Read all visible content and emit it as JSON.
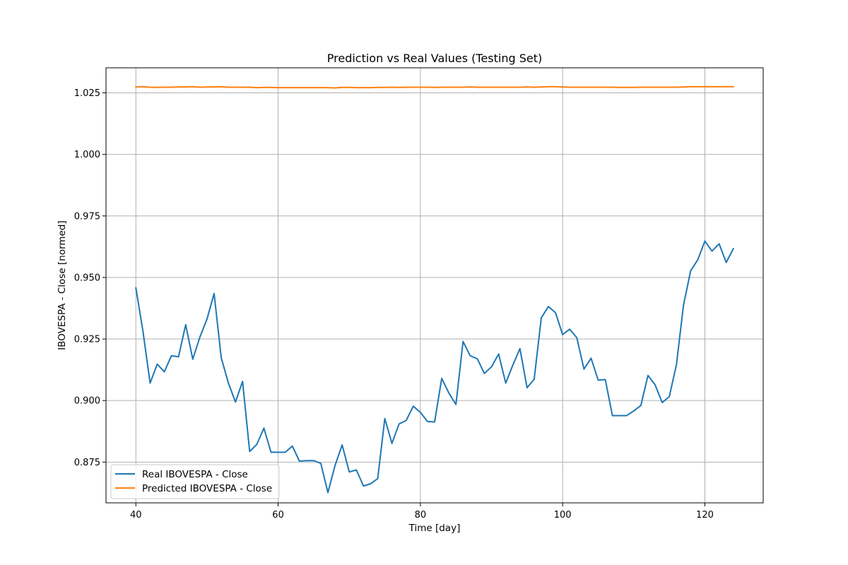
{
  "chart_data": {
    "type": "line",
    "title": "Prediction vs Real Values (Testing Set)",
    "xlabel": "Time [day]",
    "ylabel": "IBOVESPA - Close [normed]",
    "xlim": [
      35.8,
      128.2
    ],
    "ylim": [
      0.85845,
      1.03518
    ],
    "xticks": [
      40,
      60,
      80,
      100,
      120
    ],
    "xtick_labels": [
      "40",
      "60",
      "80",
      "100",
      "120"
    ],
    "yticks": [
      0.875,
      0.9,
      0.925,
      0.95,
      0.975,
      1.0,
      1.025
    ],
    "ytick_labels": [
      "0.875",
      "0.900",
      "0.925",
      "0.950",
      "0.975",
      "1.000",
      "1.025"
    ],
    "grid": true,
    "legend_position": "lower-left",
    "x": [
      40,
      41,
      42,
      43,
      44,
      45,
      46,
      47,
      48,
      49,
      50,
      51,
      52,
      53,
      54,
      55,
      56,
      57,
      58,
      59,
      60,
      61,
      62,
      63,
      64,
      65,
      66,
      67,
      68,
      69,
      70,
      71,
      72,
      73,
      74,
      75,
      76,
      77,
      78,
      79,
      80,
      81,
      82,
      83,
      84,
      85,
      86,
      87,
      88,
      89,
      90,
      91,
      92,
      93,
      94,
      95,
      96,
      97,
      98,
      99,
      100,
      101,
      102,
      103,
      104,
      105,
      106,
      107,
      108,
      109,
      110,
      111,
      112,
      113,
      114,
      115,
      116,
      117,
      118,
      119,
      120,
      121,
      122,
      123,
      124
    ],
    "series": [
      {
        "name": "Real IBOVESPA - Close",
        "color": "#1f77b4",
        "values": [
          0.9458,
          0.9281,
          0.9071,
          0.9148,
          0.9117,
          0.9182,
          0.9178,
          0.9308,
          0.9168,
          0.9258,
          0.9331,
          0.9435,
          0.9174,
          0.9072,
          0.8994,
          0.9078,
          0.8793,
          0.8822,
          0.8888,
          0.879,
          0.879,
          0.879,
          0.8815,
          0.8754,
          0.8756,
          0.8756,
          0.8745,
          0.8626,
          0.8736,
          0.882,
          0.871,
          0.8718,
          0.8653,
          0.8662,
          0.8683,
          0.8927,
          0.8826,
          0.8905,
          0.8919,
          0.8977,
          0.8952,
          0.8915,
          0.8913,
          0.909,
          0.9031,
          0.8984,
          0.924,
          0.9182,
          0.917,
          0.911,
          0.9137,
          0.9189,
          0.9071,
          0.9144,
          0.9211,
          0.9052,
          0.9087,
          0.9336,
          0.9382,
          0.9357,
          0.9268,
          0.929,
          0.9255,
          0.9128,
          0.9172,
          0.9083,
          0.9085,
          0.8939,
          0.8939,
          0.8939,
          0.8958,
          0.898,
          0.9102,
          0.9064,
          0.8992,
          0.9016,
          0.9146,
          0.9389,
          0.9527,
          0.9572,
          0.9648,
          0.9607,
          0.9637,
          0.9561,
          0.9617
        ]
      },
      {
        "name": "Predicted IBOVESPA - Close",
        "color": "#ff7f0e",
        "values": [
          1.0274,
          1.0275,
          1.0273,
          1.0272,
          1.0273,
          1.0273,
          1.0274,
          1.0274,
          1.0275,
          1.0273,
          1.0274,
          1.0274,
          1.0275,
          1.0273,
          1.0273,
          1.0273,
          1.0273,
          1.0271,
          1.0272,
          1.0272,
          1.0271,
          1.0271,
          1.0271,
          1.0271,
          1.0271,
          1.0271,
          1.0271,
          1.0271,
          1.027,
          1.0272,
          1.0272,
          1.0271,
          1.0271,
          1.0271,
          1.0272,
          1.0272,
          1.0273,
          1.0272,
          1.0273,
          1.0273,
          1.0273,
          1.0273,
          1.0272,
          1.0273,
          1.0273,
          1.0273,
          1.0273,
          1.0274,
          1.0273,
          1.0273,
          1.0273,
          1.0273,
          1.0273,
          1.0273,
          1.0273,
          1.0274,
          1.0273,
          1.0274,
          1.0275,
          1.0275,
          1.0274,
          1.0273,
          1.0273,
          1.0273,
          1.0273,
          1.0273,
          1.0273,
          1.0273,
          1.0272,
          1.0272,
          1.0272,
          1.0273,
          1.0273,
          1.0273,
          1.0273,
          1.0273,
          1.0273,
          1.0274,
          1.0275,
          1.0275,
          1.0275,
          1.0275,
          1.0275,
          1.0275,
          1.0275
        ]
      }
    ]
  }
}
